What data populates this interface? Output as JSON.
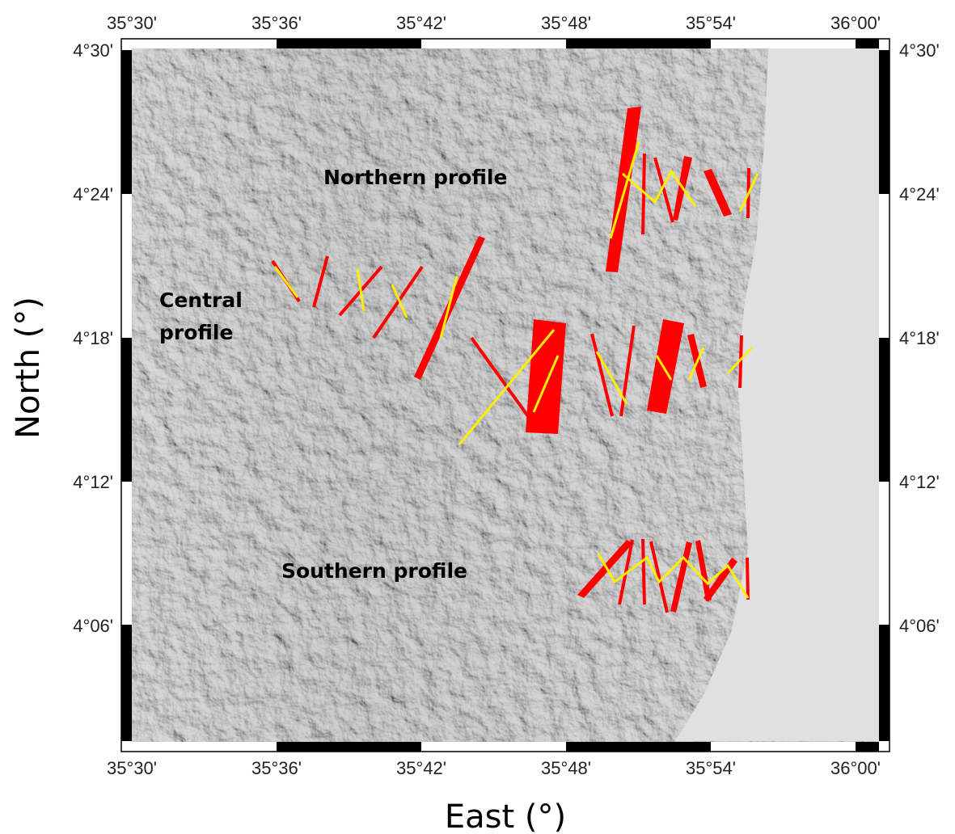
{
  "map": {
    "x_label": "East (°)",
    "y_label": "North (°)",
    "x_ticks": [
      "35°30'",
      "35°36'",
      "35°42'",
      "35°48'",
      "35°54'",
      "36°00'"
    ],
    "y_ticks": [
      "4°30'",
      "4°24'",
      "4°18'",
      "4°12'",
      "4°06'"
    ],
    "labels": {
      "northern": "Northern profile",
      "central": [
        "Central",
        "profile"
      ],
      "southern": "Southern profile"
    }
  }
}
